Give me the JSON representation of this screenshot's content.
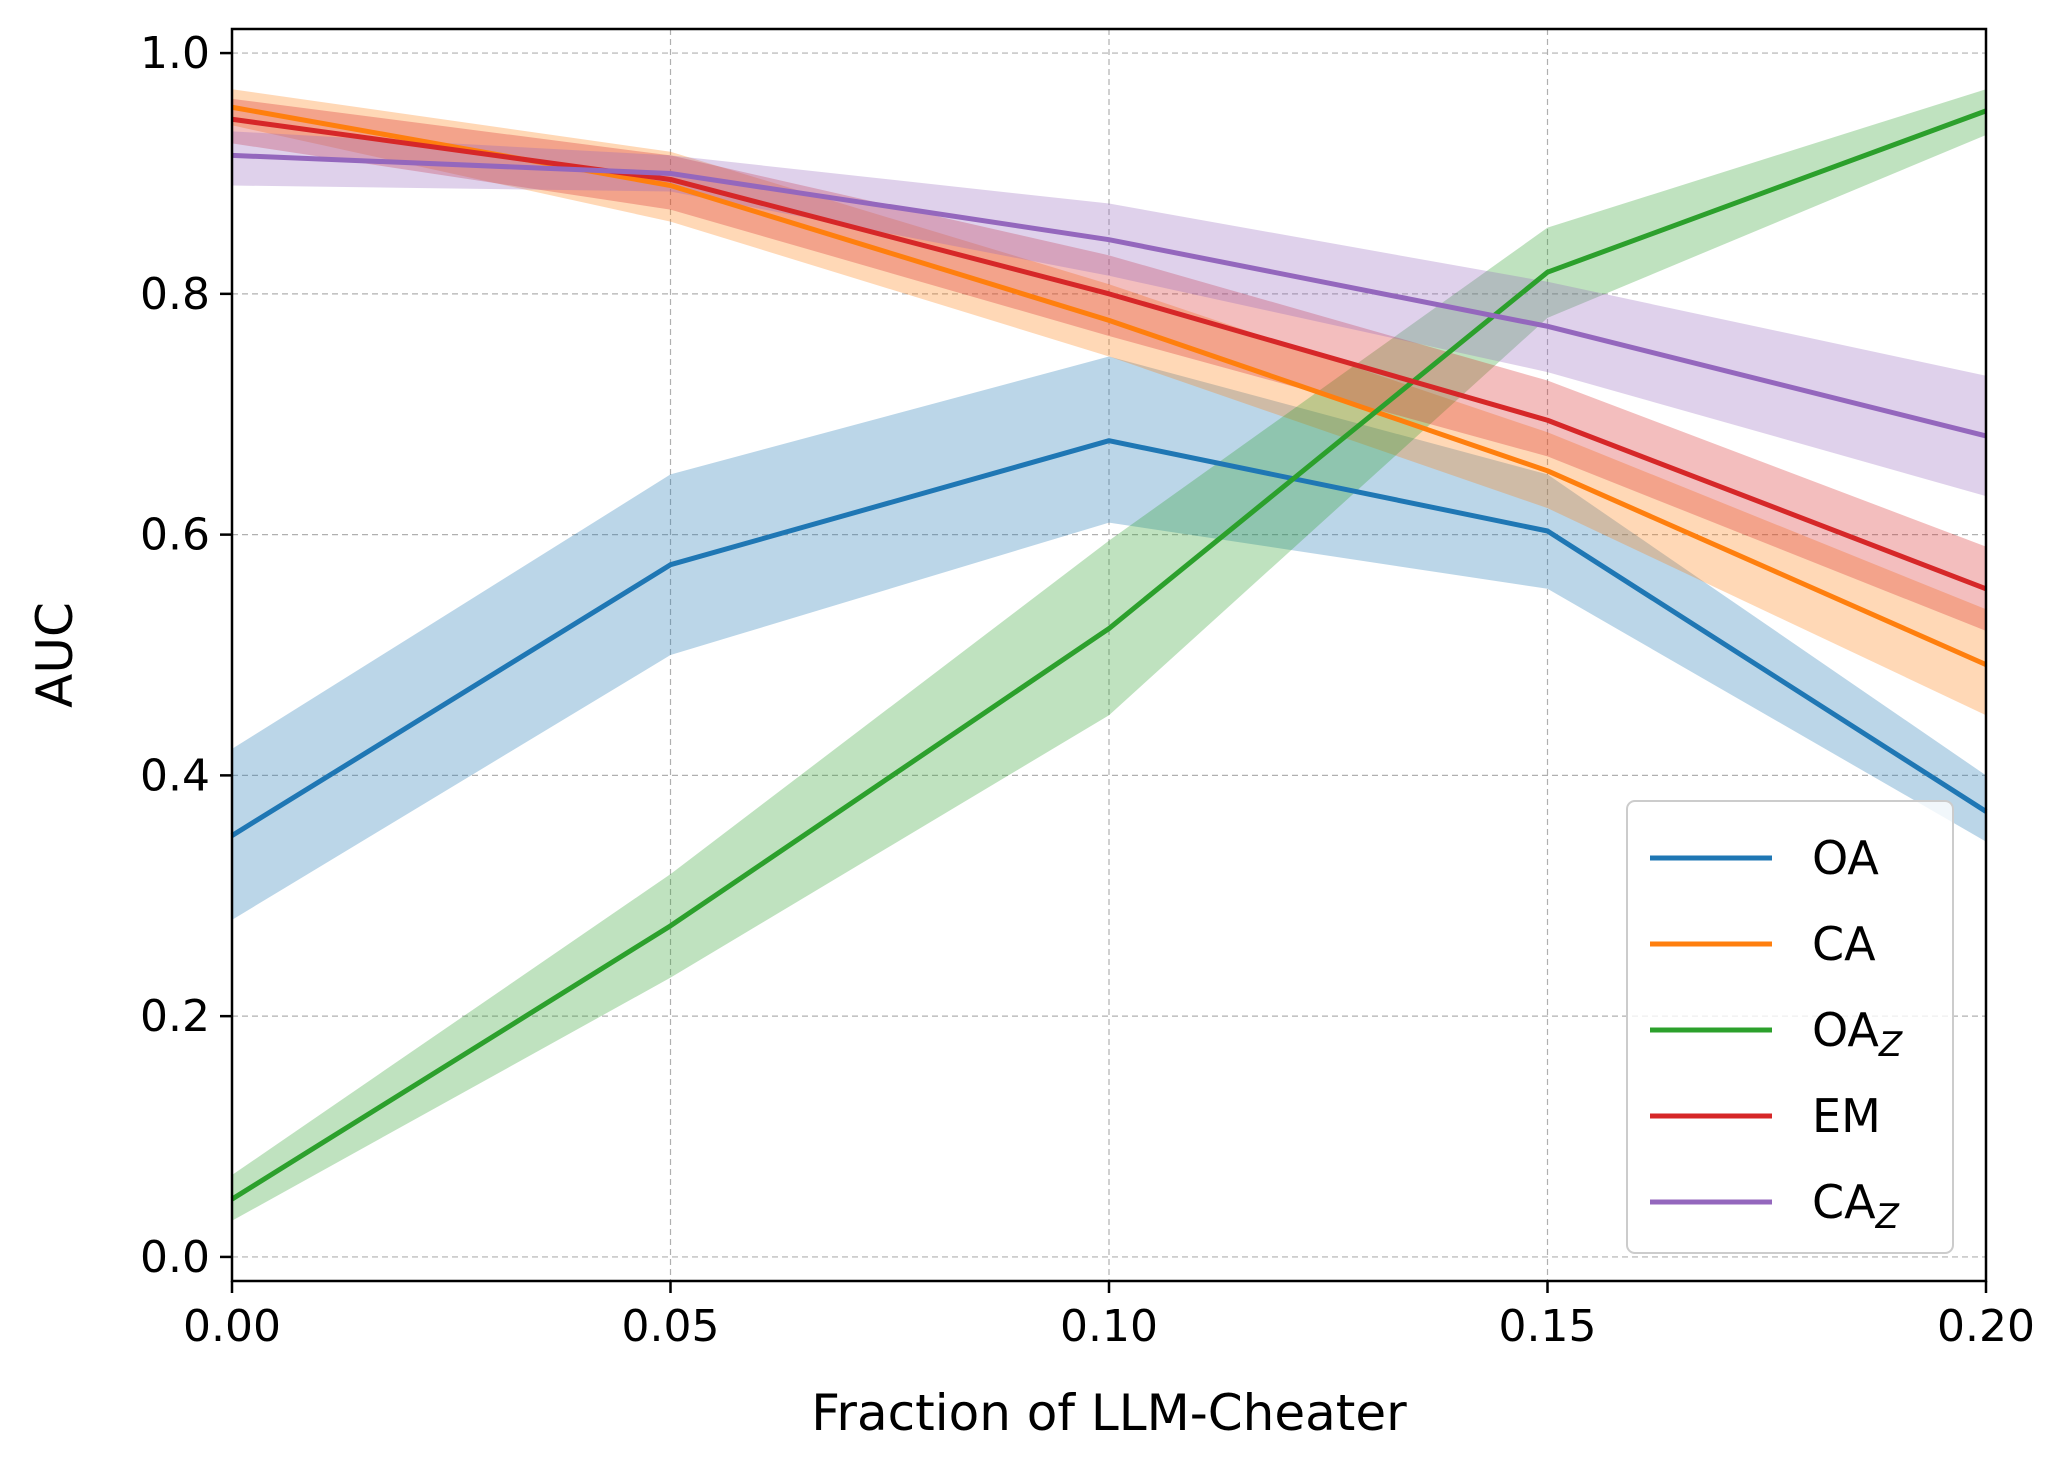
{
  "chart_data": {
    "type": "line",
    "title": "",
    "xlabel": "Fraction of LLM-Cheater",
    "ylabel": "AUC",
    "xlim": [
      0.0,
      0.2
    ],
    "ylim": [
      -0.02,
      1.02
    ],
    "x": [
      0.0,
      0.05,
      0.1,
      0.15,
      0.2
    ],
    "x_tick_labels": [
      "0.00",
      "0.05",
      "0.10",
      "0.15",
      "0.20"
    ],
    "y_ticks": [
      0.0,
      0.2,
      0.4,
      0.6,
      0.8,
      1.0
    ],
    "y_tick_labels": [
      "0.0",
      "0.2",
      "0.4",
      "0.6",
      "0.8",
      "1.0"
    ],
    "grid": true,
    "legend_position": "bottom-right",
    "series": [
      {
        "name": "OA",
        "sub": "",
        "color": "#1f77b4",
        "values": [
          0.35,
          0.575,
          0.678,
          0.603,
          0.37
        ],
        "lower": [
          0.28,
          0.5,
          0.61,
          0.555,
          0.345
        ],
        "upper": [
          0.422,
          0.65,
          0.748,
          0.65,
          0.4
        ]
      },
      {
        "name": "CA",
        "sub": "",
        "color": "#ff7f0e",
        "values": [
          0.955,
          0.89,
          0.778,
          0.653,
          0.492
        ],
        "lower": [
          0.94,
          0.86,
          0.748,
          0.622,
          0.45
        ],
        "upper": [
          0.97,
          0.918,
          0.808,
          0.685,
          0.538
        ]
      },
      {
        "name": "OA",
        "sub": "Z",
        "color": "#2ca02c",
        "values": [
          0.048,
          0.275,
          0.522,
          0.818,
          0.952
        ],
        "lower": [
          0.03,
          0.232,
          0.45,
          0.78,
          0.932
        ],
        "upper": [
          0.068,
          0.318,
          0.595,
          0.855,
          0.97
        ]
      },
      {
        "name": "EM",
        "sub": "",
        "color": "#d62728",
        "values": [
          0.945,
          0.895,
          0.8,
          0.695,
          0.555
        ],
        "lower": [
          0.925,
          0.87,
          0.765,
          0.665,
          0.52
        ],
        "upper": [
          0.962,
          0.915,
          0.832,
          0.728,
          0.59
        ]
      },
      {
        "name": "CA",
        "sub": "Z",
        "color": "#9467bd",
        "values": [
          0.915,
          0.9,
          0.845,
          0.773,
          0.682
        ],
        "lower": [
          0.89,
          0.885,
          0.815,
          0.735,
          0.632
        ],
        "upper": [
          0.935,
          0.915,
          0.875,
          0.81,
          0.732
        ]
      }
    ]
  }
}
